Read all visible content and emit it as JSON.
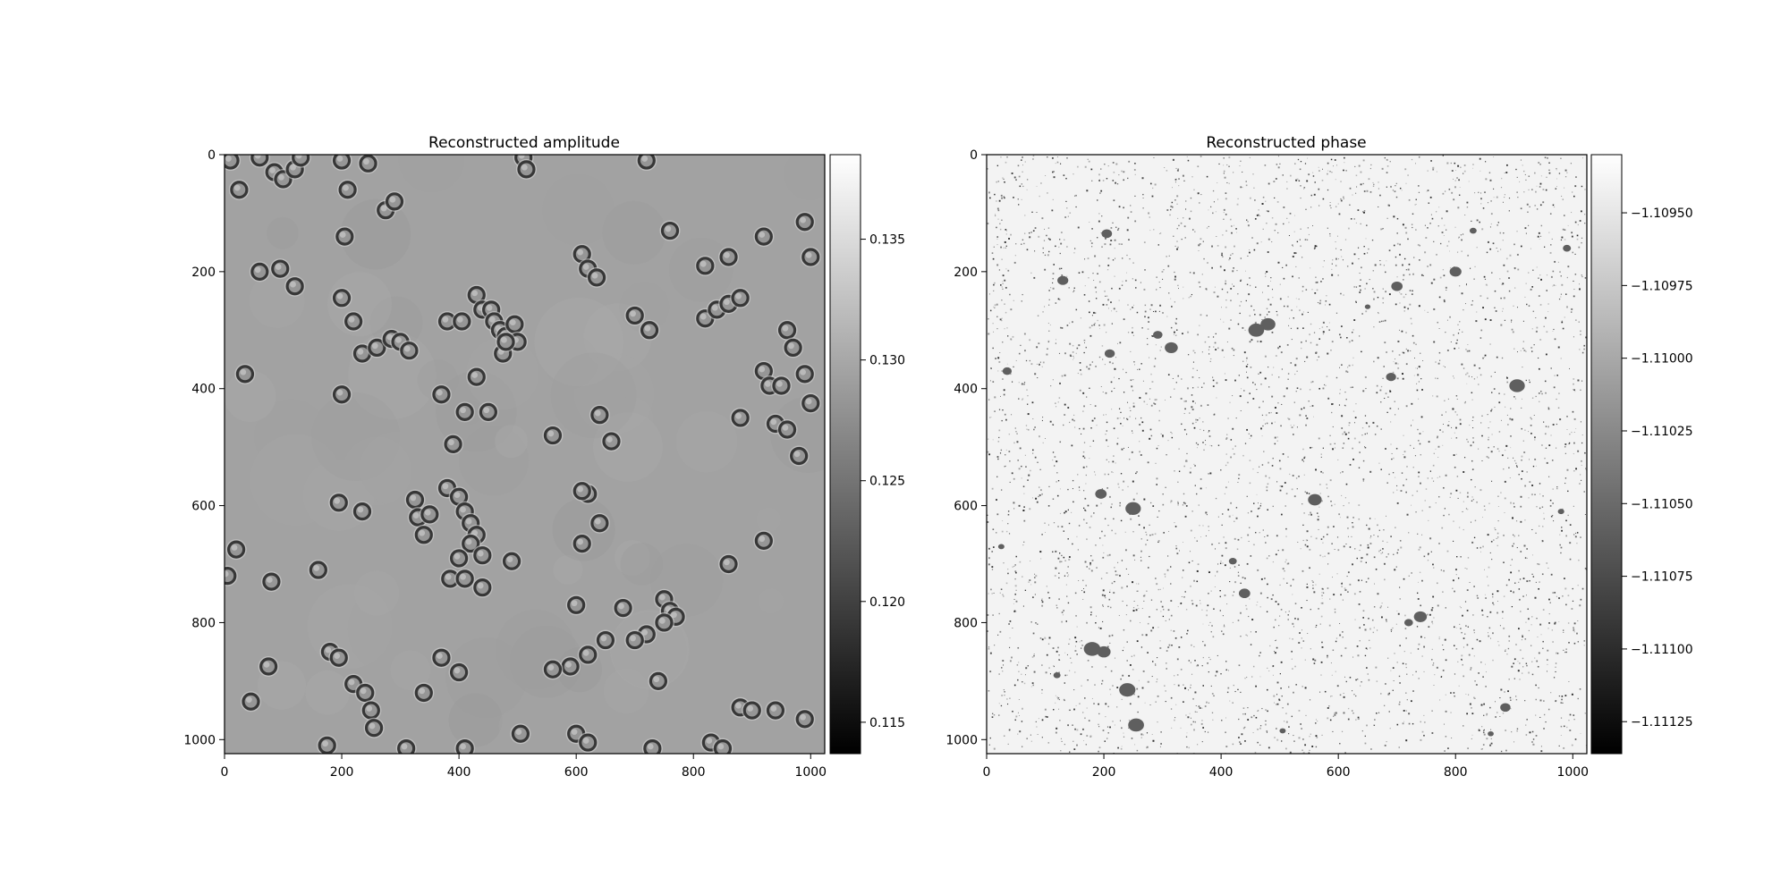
{
  "chart_data": [
    {
      "type": "heatmap",
      "title": "Reconstructed amplitude",
      "colormap": "gray",
      "x_ticks": [
        0,
        200,
        400,
        600,
        800,
        1000
      ],
      "y_ticks": [
        0,
        200,
        400,
        600,
        800,
        1000
      ],
      "x_range": [
        0,
        1024
      ],
      "y_range": [
        0,
        1024
      ],
      "y_inverted": true,
      "colorbar": {
        "range": [
          0.1137,
          0.1385
        ],
        "ticks": [
          0.115,
          0.12,
          0.125,
          0.13,
          0.135
        ],
        "tick_labels": [
          "0.115",
          "0.120",
          "0.125",
          "0.130",
          "0.135"
        ]
      },
      "background_value": 0.1295,
      "cells": [
        [
          10,
          10
        ],
        [
          25,
          60
        ],
        [
          60,
          5
        ],
        [
          85,
          30
        ],
        [
          100,
          42
        ],
        [
          120,
          25
        ],
        [
          130,
          5
        ],
        [
          200,
          10
        ],
        [
          210,
          60
        ],
        [
          245,
          15
        ],
        [
          275,
          95
        ],
        [
          290,
          80
        ],
        [
          205,
          140
        ],
        [
          510,
          5
        ],
        [
          515,
          25
        ],
        [
          720,
          10
        ],
        [
          990,
          115
        ],
        [
          1000,
          175
        ],
        [
          920,
          140
        ],
        [
          60,
          200
        ],
        [
          95,
          195
        ],
        [
          120,
          225
        ],
        [
          200,
          245
        ],
        [
          220,
          285
        ],
        [
          235,
          340
        ],
        [
          260,
          330
        ],
        [
          285,
          315
        ],
        [
          300,
          320
        ],
        [
          315,
          335
        ],
        [
          380,
          285
        ],
        [
          405,
          285
        ],
        [
          430,
          240
        ],
        [
          440,
          265
        ],
        [
          455,
          265
        ],
        [
          460,
          285
        ],
        [
          470,
          300
        ],
        [
          480,
          310
        ],
        [
          495,
          290
        ],
        [
          500,
          320
        ],
        [
          475,
          340
        ],
        [
          610,
          170
        ],
        [
          620,
          195
        ],
        [
          635,
          210
        ],
        [
          700,
          275
        ],
        [
          725,
          300
        ],
        [
          760,
          130
        ],
        [
          820,
          280
        ],
        [
          840,
          265
        ],
        [
          860,
          255
        ],
        [
          880,
          245
        ],
        [
          820,
          190
        ],
        [
          860,
          175
        ],
        [
          35,
          375
        ],
        [
          200,
          410
        ],
        [
          370,
          410
        ],
        [
          410,
          440
        ],
        [
          450,
          440
        ],
        [
          430,
          380
        ],
        [
          480,
          320
        ],
        [
          640,
          445
        ],
        [
          660,
          490
        ],
        [
          620,
          580
        ],
        [
          390,
          495
        ],
        [
          560,
          480
        ],
        [
          960,
          300
        ],
        [
          970,
          330
        ],
        [
          990,
          375
        ],
        [
          1000,
          425
        ],
        [
          920,
          370
        ],
        [
          930,
          395
        ],
        [
          950,
          395
        ],
        [
          940,
          460
        ],
        [
          960,
          470
        ],
        [
          980,
          515
        ],
        [
          880,
          450
        ],
        [
          195,
          595
        ],
        [
          235,
          610
        ],
        [
          325,
          590
        ],
        [
          330,
          620
        ],
        [
          350,
          615
        ],
        [
          340,
          650
        ],
        [
          380,
          570
        ],
        [
          400,
          585
        ],
        [
          410,
          610
        ],
        [
          420,
          630
        ],
        [
          430,
          650
        ],
        [
          420,
          665
        ],
        [
          440,
          685
        ],
        [
          400,
          690
        ],
        [
          385,
          725
        ],
        [
          410,
          725
        ],
        [
          440,
          740
        ],
        [
          490,
          695
        ],
        [
          610,
          575
        ],
        [
          640,
          630
        ],
        [
          610,
          665
        ],
        [
          920,
          660
        ],
        [
          860,
          700
        ],
        [
          160,
          710
        ],
        [
          80,
          730
        ],
        [
          20,
          675
        ],
        [
          5,
          720
        ],
        [
          600,
          770
        ],
        [
          680,
          775
        ],
        [
          750,
          760
        ],
        [
          760,
          780
        ],
        [
          770,
          790
        ],
        [
          750,
          800
        ],
        [
          720,
          820
        ],
        [
          700,
          830
        ],
        [
          650,
          830
        ],
        [
          620,
          855
        ],
        [
          590,
          875
        ],
        [
          560,
          880
        ],
        [
          75,
          875
        ],
        [
          45,
          935
        ],
        [
          180,
          850
        ],
        [
          195,
          860
        ],
        [
          220,
          905
        ],
        [
          240,
          920
        ],
        [
          250,
          950
        ],
        [
          255,
          980
        ],
        [
          175,
          1010
        ],
        [
          370,
          860
        ],
        [
          400,
          885
        ],
        [
          340,
          920
        ],
        [
          410,
          1015
        ],
        [
          505,
          990
        ],
        [
          600,
          990
        ],
        [
          620,
          1005
        ],
        [
          730,
          1015
        ],
        [
          740,
          900
        ],
        [
          880,
          945
        ],
        [
          900,
          950
        ],
        [
          940,
          950
        ],
        [
          990,
          965
        ],
        [
          830,
          1005
        ],
        [
          850,
          1015
        ],
        [
          310,
          1015
        ]
      ]
    },
    {
      "type": "heatmap",
      "title": "Reconstructed phase",
      "colormap": "gray",
      "x_ticks": [
        0,
        200,
        400,
        600,
        800,
        1000
      ],
      "y_ticks": [
        0,
        200,
        400,
        600,
        800,
        1000
      ],
      "x_range": [
        0,
        1024
      ],
      "y_range": [
        0,
        1024
      ],
      "y_inverted": true,
      "colorbar": {
        "range": [
          -1.11136,
          -1.1093
        ],
        "ticks": [
          -1.1095,
          -1.10975,
          -1.11,
          -1.11025,
          -1.1105,
          -1.11075,
          -1.111,
          -1.11125
        ],
        "tick_labels": [
          "−1.10950",
          "−1.10975",
          "−1.11000",
          "−1.11025",
          "−1.11050",
          "−1.11075",
          "−1.11100",
          "−1.11125"
        ]
      },
      "background_value": -1.1094,
      "blobs": [
        [
          292,
          308
        ],
        [
          315,
          330
        ],
        [
          740,
          790
        ],
        [
          885,
          945
        ],
        [
          205,
          135
        ],
        [
          210,
          340
        ],
        [
          35,
          370
        ],
        [
          130,
          215
        ],
        [
          25,
          670
        ],
        [
          195,
          580
        ],
        [
          250,
          605
        ],
        [
          420,
          695
        ],
        [
          440,
          750
        ],
        [
          180,
          845
        ],
        [
          200,
          850
        ],
        [
          240,
          915
        ],
        [
          255,
          975
        ],
        [
          505,
          985
        ],
        [
          720,
          800
        ],
        [
          905,
          395
        ],
        [
          480,
          290
        ],
        [
          460,
          300
        ],
        [
          560,
          590
        ],
        [
          650,
          260
        ],
        [
          690,
          380
        ],
        [
          800,
          200
        ],
        [
          990,
          160
        ],
        [
          830,
          130
        ],
        [
          980,
          610
        ],
        [
          120,
          890
        ],
        [
          700,
          225
        ],
        [
          860,
          990
        ]
      ]
    }
  ]
}
